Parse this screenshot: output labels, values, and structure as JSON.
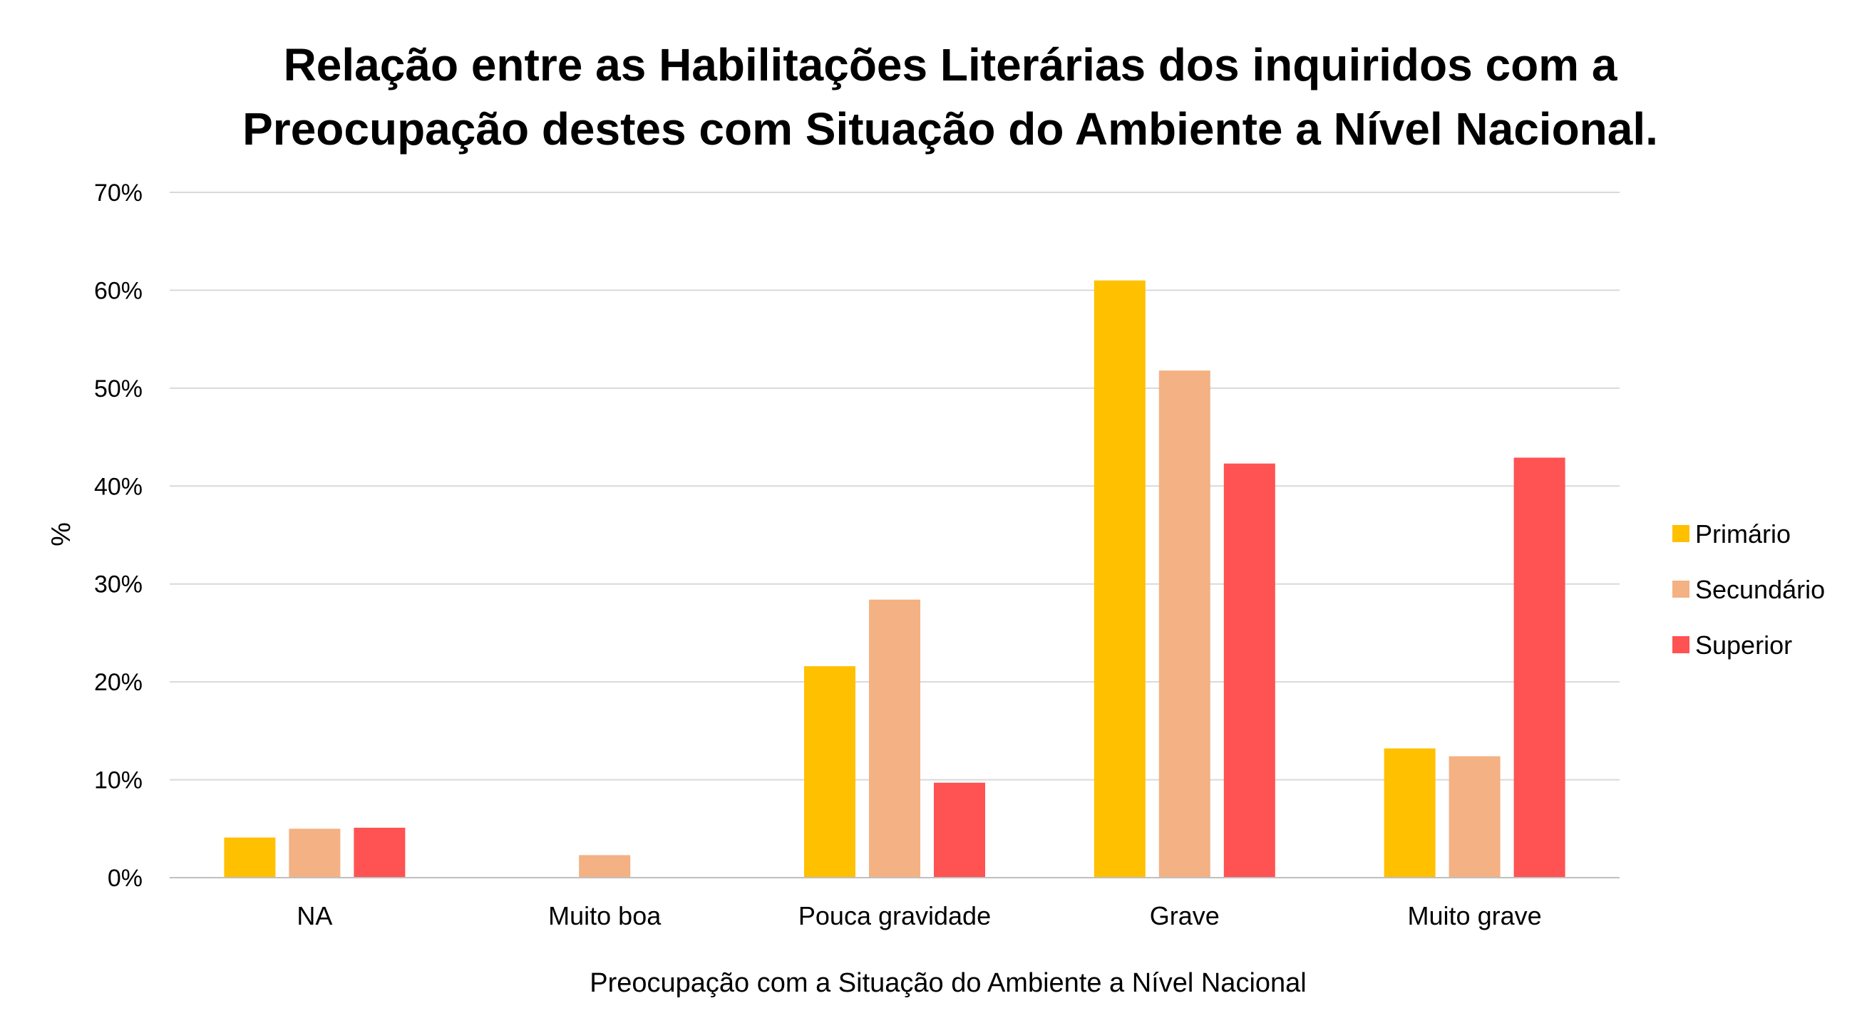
{
  "chart_data": {
    "type": "bar",
    "title": [
      "Relação entre as Habilitações Literárias dos inquiridos com a",
      "Preocupação destes com Situação do Ambiente a Nível Nacional."
    ],
    "xlabel": "Preocupação com a Situação do Ambiente a Nível Nacional",
    "ylabel": "%",
    "ylim": [
      0,
      70
    ],
    "yticks": [
      0,
      10,
      20,
      30,
      40,
      50,
      60,
      70
    ],
    "ytick_labels": [
      "0%",
      "10%",
      "20%",
      "30%",
      "40%",
      "50%",
      "60%",
      "70%"
    ],
    "grid": true,
    "legend_position": "right",
    "categories": [
      "NA",
      "Muito boa",
      "Pouca gravidade",
      "Grave",
      "Muito grave"
    ],
    "series": [
      {
        "name": "Primário",
        "color": "#FFC000",
        "values": [
          4.1,
          0,
          21.6,
          61.0,
          13.2
        ]
      },
      {
        "name": "Secundário",
        "color": "#F4B183",
        "values": [
          5.0,
          2.3,
          28.4,
          51.8,
          12.4
        ]
      },
      {
        "name": "Superior",
        "color": "#FF5252",
        "values": [
          5.1,
          0,
          9.7,
          42.3,
          42.9
        ]
      }
    ]
  }
}
